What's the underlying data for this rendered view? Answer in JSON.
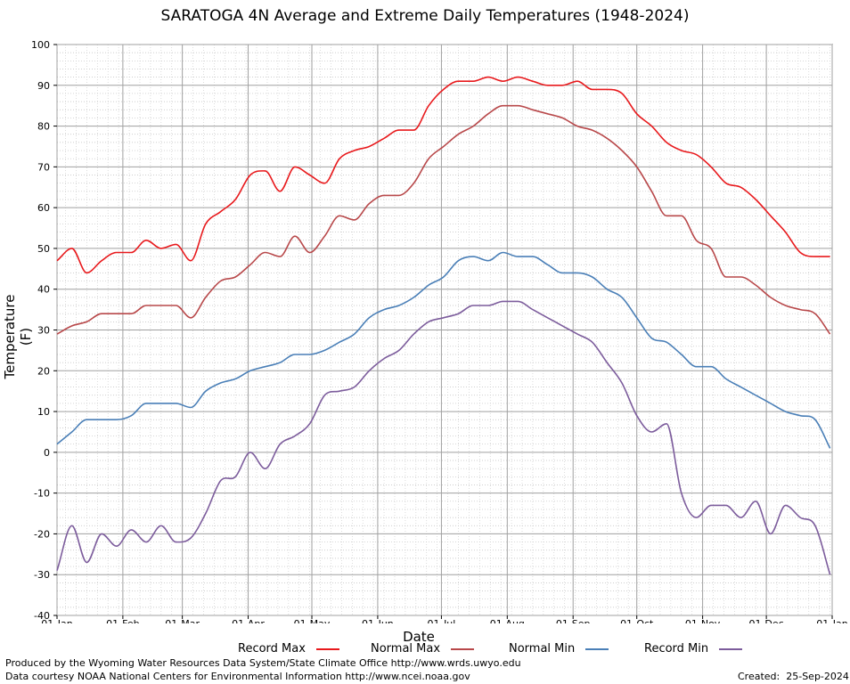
{
  "chart_data": {
    "type": "line",
    "title": "SARATOGA 4N Average and Extreme Daily Temperatures (1948-2024)",
    "xlabel": "Date",
    "ylabel": "Temperature (F)",
    "ylim": [
      -40,
      100
    ],
    "yticks": [
      -40,
      -30,
      -20,
      -10,
      0,
      10,
      20,
      30,
      40,
      50,
      60,
      70,
      80,
      90,
      100
    ],
    "xticks": [
      {
        "label": "01-Jan",
        "day": 1
      },
      {
        "label": "01-Feb",
        "day": 32
      },
      {
        "label": "01-Mar",
        "day": 60
      },
      {
        "label": "01-Apr",
        "day": 91
      },
      {
        "label": "01-May",
        "day": 121
      },
      {
        "label": "01-Jun",
        "day": 152
      },
      {
        "label": "01-Jul",
        "day": 182
      },
      {
        "label": "01-Aug",
        "day": 213
      },
      {
        "label": "01-Sep",
        "day": 244
      },
      {
        "label": "01-Oct",
        "day": 274
      },
      {
        "label": "01-Nov",
        "day": 305
      },
      {
        "label": "01-Dec",
        "day": 335
      },
      {
        "label": "01-Jan",
        "day": 366
      }
    ],
    "xlim": [
      1,
      366
    ],
    "grid": true,
    "legend_position": "bottom",
    "x_sample_days": [
      1,
      8,
      15,
      22,
      29,
      36,
      43,
      50,
      57,
      64,
      71,
      78,
      85,
      92,
      99,
      106,
      113,
      120,
      127,
      134,
      141,
      148,
      155,
      162,
      169,
      176,
      183,
      190,
      197,
      204,
      211,
      218,
      225,
      232,
      239,
      246,
      253,
      260,
      267,
      274,
      281,
      288,
      295,
      302,
      309,
      316,
      323,
      330,
      337,
      344,
      351,
      358,
      365
    ],
    "series": [
      {
        "name": "Record Max",
        "color": "#e8191c",
        "values": [
          47,
          50,
          44,
          47,
          49,
          49,
          52,
          50,
          51,
          47,
          56,
          59,
          62,
          68,
          69,
          64,
          70,
          68,
          66,
          72,
          74,
          75,
          77,
          79,
          79,
          85,
          89,
          91,
          91,
          92,
          91,
          92,
          91,
          90,
          90,
          91,
          89,
          89,
          88,
          83,
          80,
          76,
          74,
          73,
          70,
          66,
          65,
          62,
          58,
          54,
          49,
          48,
          48
        ]
      },
      {
        "name": "Normal Max",
        "color": "#b8484a",
        "values": [
          29,
          31,
          32,
          34,
          34,
          34,
          36,
          36,
          36,
          33,
          38,
          42,
          43,
          46,
          49,
          48,
          53,
          49,
          53,
          58,
          57,
          61,
          63,
          63,
          66,
          72,
          75,
          78,
          80,
          83,
          85,
          85,
          84,
          83,
          82,
          80,
          79,
          77,
          74,
          70,
          64,
          58,
          58,
          52,
          50,
          43,
          43,
          41,
          38,
          36,
          35,
          34,
          29
        ]
      },
      {
        "name": "Normal Min",
        "color": "#4a7fb7",
        "values": [
          2,
          5,
          8,
          8,
          8,
          9,
          12,
          12,
          12,
          11,
          15,
          17,
          18,
          20,
          21,
          22,
          24,
          24,
          25,
          27,
          29,
          33,
          35,
          36,
          38,
          41,
          43,
          47,
          48,
          47,
          49,
          48,
          48,
          46,
          44,
          44,
          43,
          40,
          38,
          33,
          28,
          27,
          24,
          21,
          21,
          18,
          16,
          14,
          12,
          10,
          9,
          8,
          1
        ]
      },
      {
        "name": "Record Min",
        "color": "#7c5c9c",
        "values": [
          -29,
          -18,
          -27,
          -20,
          -23,
          -19,
          -22,
          -18,
          -22,
          -21,
          -15,
          -7,
          -6,
          0,
          -4,
          2,
          4,
          7,
          14,
          15,
          16,
          20,
          23,
          25,
          29,
          32,
          33,
          34,
          36,
          36,
          37,
          37,
          35,
          33,
          31,
          29,
          27,
          22,
          17,
          9,
          5,
          7,
          -10,
          -16,
          -13,
          -13,
          -16,
          -12,
          -20,
          -13,
          -16,
          -18,
          -30
        ]
      }
    ]
  }
}
